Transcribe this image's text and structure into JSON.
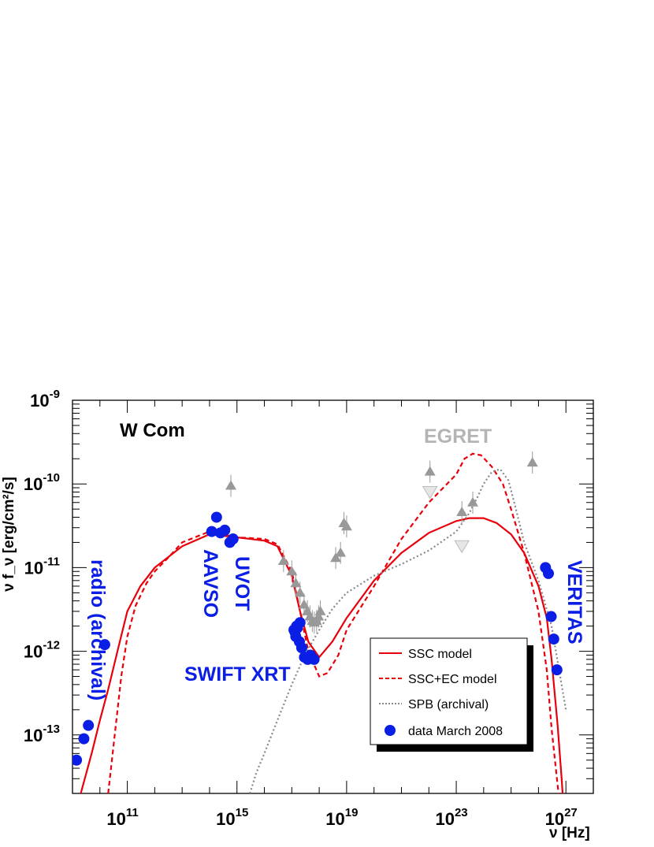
{
  "chart_data": {
    "type": "scatter",
    "title": "W Com",
    "xlabel": "ν [Hz]",
    "ylabel": "ν f_ν [erg/cm²/s]",
    "xscale": "log",
    "yscale": "log",
    "xlim": [
      1000000000.0,
      1e+28
    ],
    "ylim": [
      2e-14,
      1e-09
    ],
    "x_ticks": [
      {
        "label": "10",
        "exp": "11",
        "value": 100000000000.0
      },
      {
        "label": "10",
        "exp": "15",
        "value": 1000000000000000.0
      },
      {
        "label": "10",
        "exp": "19",
        "value": 1e+19
      },
      {
        "label": "10",
        "exp": "23",
        "value": 1e+23
      },
      {
        "label": "10",
        "exp": "27",
        "value": 1e+27
      }
    ],
    "y_ticks": [
      {
        "label": "10",
        "exp": "-13",
        "value": 1e-13
      },
      {
        "label": "10",
        "exp": "-12",
        "value": 1e-12
      },
      {
        "label": "10",
        "exp": "-11",
        "value": 1e-11
      },
      {
        "label": "10",
        "exp": "-10",
        "value": 1e-10
      },
      {
        "label": "10",
        "exp": "-9",
        "value": 1e-09
      }
    ],
    "annotations": [
      {
        "text": "radio (archival)"
      },
      {
        "text": "AAVSO"
      },
      {
        "text": "UVOT"
      },
      {
        "text": "SWIFT XRT"
      },
      {
        "text": "EGRET"
      },
      {
        "text": "VERITAS"
      }
    ],
    "legend": {
      "position": "lower-right",
      "entries": [
        {
          "label": "SSC model",
          "style": "solid-red"
        },
        {
          "label": "SSC+EC model",
          "style": "dashed-red"
        },
        {
          "label": "SPB (archival)",
          "style": "dotted-gray"
        },
        {
          "label": "data March 2008",
          "style": "blue-circle"
        }
      ]
    },
    "colors": {
      "data": "#0a1ee6",
      "model": "#e8000b",
      "archival": "#999999",
      "spb": "#888888"
    },
    "series": [
      {
        "name": "data March 2008",
        "kind": "points",
        "x": [
          1400000000.0,
          2600000000.0,
          3800000000.0,
          15000000000.0,
          120000000000000.0,
          180000000000000.0,
          250000000000000.0,
          360000000000000.0,
          550000000000000.0,
          720000000000000.0,
          1.2e+17,
          1.4e+17,
          1.6e+17,
          1.9e+17,
          2.3e+17,
          2.9e+17,
          3.8e+17,
          4.8e+17,
          6.5e+17,
          1.5e+17,
          1.3e+17,
          2e+17,
          1.8e+26,
          2.3e+26,
          2.9e+26,
          3.6e+26,
          4.7e+26
        ],
        "y": [
          5e-14,
          9e-14,
          1.3e-13,
          1.2e-12,
          2.7e-11,
          4e-11,
          2.6e-11,
          2.8e-11,
          2e-11,
          2.2e-11,
          1.8e-12,
          1.5e-12,
          1.9e-12,
          1.3e-12,
          1.1e-12,
          8.5e-13,
          8e-13,
          9e-13,
          8e-13,
          2e-12,
          1.7e-12,
          2.2e-12,
          1e-11,
          8.5e-12,
          2.6e-12,
          1.4e-12,
          6e-13
        ]
      },
      {
        "name": "EGRET",
        "kind": "triangles",
        "x": [
          600000000000000.0,
          5e+16,
          1e+17,
          1.4e+17,
          2e+17,
          2.8e+17,
          3.7e+17,
          4.6e+17,
          5.6e+17,
          6.6e+17,
          8e+17,
          9.5e+17,
          1.1e+18,
          4e+18,
          6e+18,
          8e+18,
          1e+19,
          1.1e+22,
          1.6e+23,
          4e+23,
          6e+25
        ],
        "y": [
          9.5e-11,
          1.2e-11,
          9e-12,
          6.5e-12,
          5e-12,
          3.6e-12,
          3e-12,
          2.6e-12,
          2.3e-12,
          2.2e-12,
          2.3e-12,
          2.6e-12,
          3e-12,
          1.3e-11,
          1.5e-11,
          3.4e-11,
          3.1e-11,
          1.4e-10,
          4.6e-11,
          6e-11,
          1.8e-10
        ]
      },
      {
        "name": "EGRET upper limits",
        "kind": "down-triangles",
        "x": [
          1.1e+22,
          1.6e+23
        ],
        "y": [
          8e-11,
          1.8e-11
        ]
      },
      {
        "name": "SSC model",
        "kind": "line",
        "x": [
          2000000000.0,
          5000000000.0,
          10000000000.0,
          20000000000.0,
          50000000000.0,
          100000000000.0,
          300000000000.0,
          1000000000000.0,
          10000000000000.0,
          100000000000000.0,
          1000000000000000.0,
          1e+16,
          3e+16,
          1e+17,
          2e+17,
          4e+17,
          1e+18,
          3e+18,
          1e+19,
          1e+20,
          1e+21,
          1e+22,
          1e+23,
          3e+23,
          1e+24,
          3e+24,
          1e+25,
          3e+25,
          1e+26,
          2e+26,
          3e+26,
          5e+26,
          7e+26,
          1e+27
        ],
        "y": [
          2e-14,
          6e-14,
          1.5e-13,
          3.5e-13,
          1.2e-12,
          3e-12,
          6e-12,
          1e-11,
          1.8e-11,
          2.5e-11,
          2.3e-11,
          2.1e-11,
          1.8e-11,
          8e-12,
          3e-12,
          1.3e-12,
          8.5e-13,
          1.3e-12,
          2.5e-12,
          7e-12,
          1.5e-11,
          2.6e-11,
          3.6e-11,
          3.9e-11,
          3.9e-11,
          3.4e-11,
          2.5e-11,
          1.5e-11,
          6e-12,
          2.5e-12,
          8e-13,
          1.3e-13,
          3e-14,
          5e-15
        ]
      },
      {
        "name": "SSC+EC model",
        "kind": "dashed-line",
        "x": [
          20000000000.0,
          40000000000.0,
          60000000000.0,
          100000000000.0,
          200000000000.0,
          500000000000.0,
          1000000000000.0,
          3000000000000.0,
          10000000000000.0,
          100000000000000.0,
          1000000000000000.0,
          1e+16,
          3e+16,
          1e+17,
          2e+17,
          4e+17,
          1e+18,
          2e+18,
          5e+18,
          1e+19,
          1e+20,
          1e+21,
          1e+22,
          1e+23,
          2e+23,
          4e+23,
          8e+23,
          2e+24,
          5e+24,
          1e+25,
          3e+25,
          1e+26,
          2e+26,
          3e+26,
          5e+26,
          7e+26
        ],
        "y": [
          2e-14,
          1.5e-13,
          5e-13,
          1.5e-12,
          3.5e-12,
          6.5e-12,
          9e-12,
          1.3e-11,
          2e-11,
          2.7e-11,
          2.3e-11,
          2.2e-11,
          1.9e-11,
          9e-12,
          3e-12,
          1e-12,
          5e-13,
          5.5e-13,
          9e-13,
          1.8e-12,
          6e-12,
          2.2e-11,
          6e-11,
          1.3e-10,
          2e-10,
          2.3e-10,
          2.2e-10,
          1.6e-10,
          1e-10,
          5e-11,
          1.5e-11,
          3e-12,
          6e-13,
          1.2e-13,
          2.5e-14,
          1e-14
        ]
      },
      {
        "name": "SPB (archival)",
        "kind": "dotted-line",
        "x": [
          3000000000000000.0,
          5000000000000000.0,
          1e+16,
          3e+16,
          1e+17,
          3e+17,
          1e+18,
          3e+18,
          1e+19,
          1e+20,
          1e+21,
          1e+22,
          1e+23,
          3e+23,
          6e+23,
          1e+24,
          2e+24,
          4e+24,
          8e+24,
          1.5e+25,
          3e+25,
          1e+26,
          3e+26,
          1e+27
        ],
        "y": [
          2e-14,
          3.5e-14,
          6e-14,
          1.5e-13,
          4e-13,
          9e-13,
          1.8e-12,
          3.2e-12,
          5e-12,
          8e-12,
          1.1e-11,
          1.6e-11,
          2.7e-11,
          4.5e-11,
          7e-11,
          1e-10,
          1.4e-10,
          1.5e-10,
          1.1e-10,
          5e-11,
          2e-11,
          7e-12,
          2e-12,
          2e-13
        ]
      }
    ]
  }
}
